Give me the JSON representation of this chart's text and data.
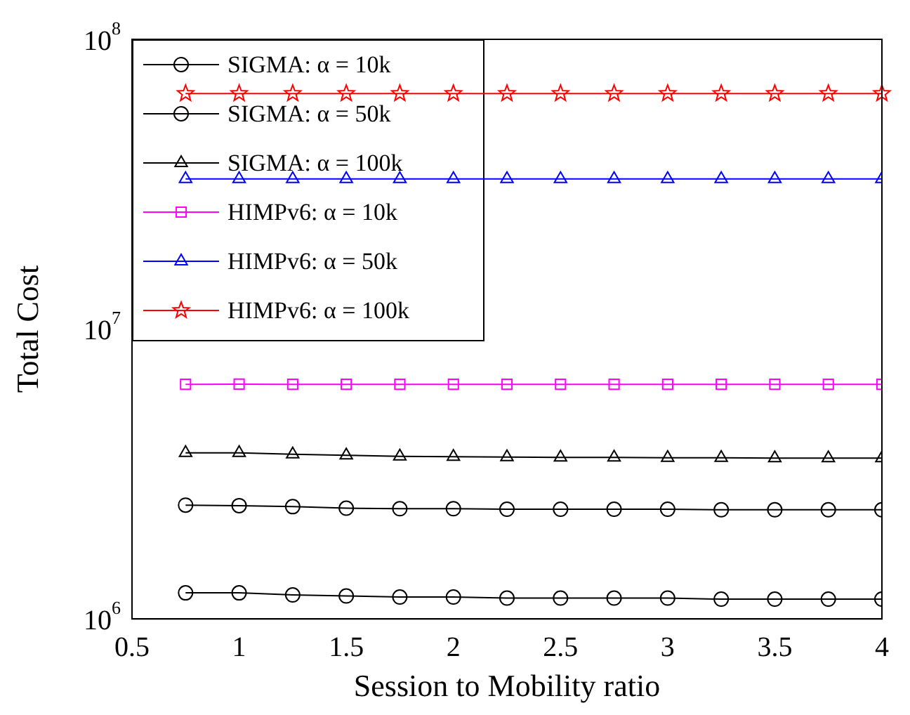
{
  "chart_data": {
    "type": "line",
    "xlabel": "Session to Mobility ratio",
    "ylabel": "Total Cost",
    "x": [
      0.75,
      1,
      1.25,
      1.5,
      1.75,
      2,
      2.25,
      2.5,
      2.75,
      3,
      3.25,
      3.5,
      3.75,
      4
    ],
    "series": [
      {
        "name": "SIGMA: α = 10k",
        "color": "#000000",
        "marker": "circle",
        "values": [
          1230000,
          1230000,
          1210000,
          1200000,
          1190000,
          1190000,
          1180000,
          1180000,
          1180000,
          1180000,
          1170000,
          1170000,
          1170000,
          1170000
        ]
      },
      {
        "name": "SIGMA: α = 50k",
        "color": "#000000",
        "marker": "circle",
        "values": [
          2470000,
          2460000,
          2440000,
          2410000,
          2400000,
          2400000,
          2390000,
          2390000,
          2390000,
          2390000,
          2380000,
          2380000,
          2380000,
          2380000
        ]
      },
      {
        "name": "SIGMA: α = 100k",
        "color": "#000000",
        "marker": "triangle",
        "values": [
          3740000,
          3740000,
          3700000,
          3670000,
          3640000,
          3630000,
          3620000,
          3610000,
          3610000,
          3600000,
          3600000,
          3590000,
          3590000,
          3590000
        ]
      },
      {
        "name": "HIMPv6: α = 10k",
        "color": "#ff00ff",
        "marker": "square",
        "values": [
          6450000,
          6460000,
          6450000,
          6450000,
          6450000,
          6450000,
          6450000,
          6450000,
          6450000,
          6450000,
          6450000,
          6450000,
          6450000,
          6450000
        ]
      },
      {
        "name": "HIMPv6: α = 50k",
        "color": "#0000ff",
        "marker": "triangle",
        "values": [
          33000000,
          33000000,
          33000000,
          33000000,
          33000000,
          33000000,
          33000000,
          33000000,
          33000000,
          33000000,
          33000000,
          33000000,
          33000000,
          33000000
        ]
      },
      {
        "name": "HIMPv6: α = 100k",
        "color": "#ff0000",
        "marker": "star",
        "values": [
          65000000,
          65000000,
          65000000,
          65000000,
          65000000,
          65000000,
          65000000,
          65000000,
          65000000,
          65000000,
          65000000,
          65000000,
          65000000,
          65000000
        ]
      }
    ],
    "xlim": [
      0.5,
      4
    ],
    "xticks": [
      0.5,
      1,
      1.5,
      2,
      2.5,
      3,
      3.5,
      4
    ],
    "ylim": [
      1000000,
      100000000
    ],
    "yticks": [
      {
        "value": 1000000,
        "label": "10$^{6}$"
      },
      {
        "value": 10000000,
        "label": "10$^{7}$"
      },
      {
        "value": 100000000,
        "label": "10$^{8}$"
      }
    ],
    "log": "y",
    "grid": false,
    "legend": "top left"
  }
}
